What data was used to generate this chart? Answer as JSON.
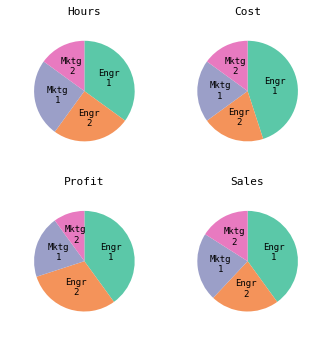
{
  "charts": [
    {
      "title": "Hours",
      "values": [
        35,
        25,
        25,
        15
      ],
      "labels": [
        "Engr\n1",
        "Engr\n2",
        "Mktg\n1",
        "Mktg\n2"
      ]
    },
    {
      "title": "Cost",
      "values": [
        45,
        20,
        20,
        15
      ],
      "labels": [
        "Engr\n1",
        "Engr\n2",
        "Mktg\n1",
        "Mktg\n2"
      ]
    },
    {
      "title": "Profit",
      "values": [
        40,
        30,
        20,
        10
      ],
      "labels": [
        "Engr\n1",
        "Engr\n2",
        "Mktg\n1",
        "Mktg\n2"
      ]
    },
    {
      "title": "Sales",
      "values": [
        40,
        22,
        22,
        16
      ],
      "labels": [
        "Engr\n1",
        "Engr\n2",
        "Mktg\n1",
        "Mktg\n2"
      ]
    }
  ],
  "colors": [
    "#5BC8A8",
    "#F4935A",
    "#9B9FC8",
    "#E87AC0"
  ],
  "background_color": "#ffffff",
  "title_fontsize": 8,
  "label_fontsize": 6.5
}
